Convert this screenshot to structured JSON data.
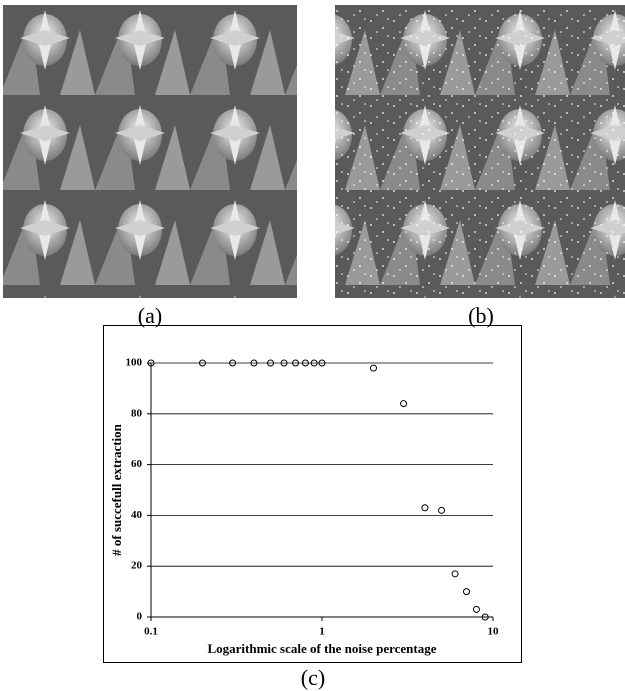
{
  "figure": {
    "captions": [
      "(a)",
      "(b)",
      "(c)"
    ]
  },
  "chart_data": {
    "type": "scatter",
    "x_label": "Logarithmic scale of the noise percentage",
    "y_label": "# of succefull extraction",
    "x": [
      0.1,
      0.2,
      0.3,
      0.4,
      0.5,
      0.6,
      0.7,
      0.8,
      0.9,
      1,
      2,
      3,
      4,
      5,
      6,
      7,
      8,
      9
    ],
    "values": [
      100,
      100,
      100,
      100,
      100,
      100,
      100,
      100,
      100,
      100,
      98,
      84,
      43,
      42,
      17,
      10,
      3,
      0
    ],
    "color": "#000000",
    "x_log": true,
    "xlim": [
      0.1,
      10
    ],
    "xticks": [
      0.1,
      1,
      10
    ],
    "ylim": [
      0,
      100
    ],
    "yticks": [
      0,
      20,
      40,
      60,
      80,
      100
    ],
    "grid": true
  }
}
